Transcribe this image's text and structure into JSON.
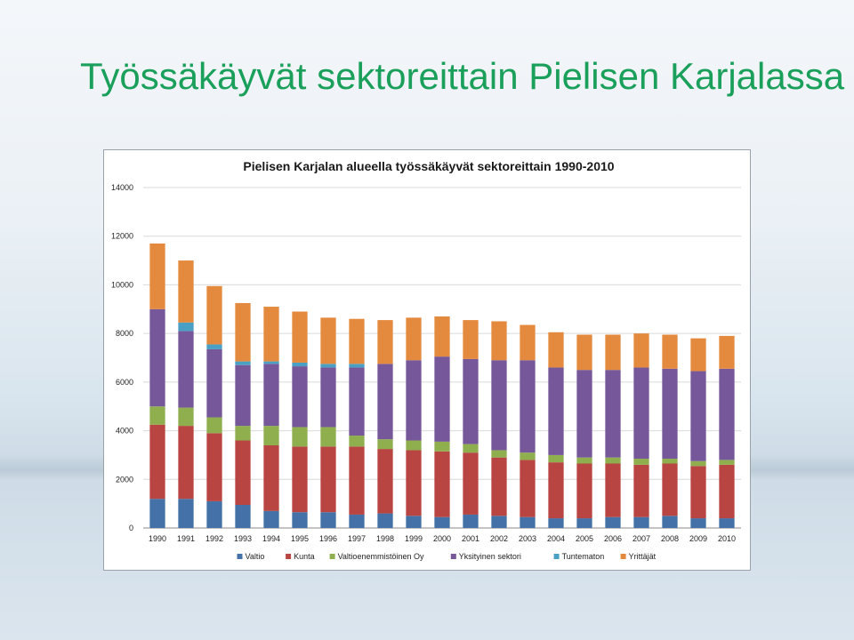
{
  "slide": {
    "title": "Työssäkäyvät sektoreittain Pielisen Karjalassa",
    "title_color": "#1aa05a"
  },
  "chart_data": {
    "type": "bar",
    "stacked": true,
    "title": "Pielisen Karjalan alueella työssäkäyvät sektoreittain 1990-2010",
    "xlabel": "",
    "ylabel": "",
    "ylim": [
      0,
      14000
    ],
    "yticks": [
      "0",
      "2000",
      "4000",
      "6000",
      "8000",
      "10000",
      "12000",
      "14000"
    ],
    "grid": true,
    "legend_position": "bottom",
    "categories": [
      "1990",
      "1991",
      "1992",
      "1993",
      "1994",
      "1995",
      "1996",
      "1997",
      "1998",
      "1999",
      "2000",
      "2001",
      "2002",
      "2003",
      "2004",
      "2005",
      "2006",
      "2007",
      "2008",
      "2009",
      "2010"
    ],
    "series": [
      {
        "name": "Valtio",
        "color": "#4472a8",
        "values": [
          1200,
          1200,
          1100,
          950,
          700,
          650,
          650,
          550,
          600,
          500,
          450,
          550,
          500,
          450,
          400,
          400,
          450,
          450,
          500,
          400,
          400
        ]
      },
      {
        "name": "Kunta",
        "color": "#b84541",
        "values": [
          3050,
          3000,
          2800,
          2650,
          2700,
          2700,
          2700,
          2800,
          2650,
          2700,
          2700,
          2550,
          2400,
          2350,
          2300,
          2250,
          2200,
          2150,
          2150,
          2150,
          2200
        ]
      },
      {
        "name": "Valtioenemmistöinen Oy",
        "color": "#8faf4e",
        "values": [
          750,
          750,
          650,
          600,
          800,
          800,
          800,
          450,
          400,
          400,
          400,
          350,
          300,
          300,
          300,
          250,
          250,
          250,
          200,
          200,
          200
        ]
      },
      {
        "name": "Yksityinen sektori",
        "color": "#76589a",
        "values": [
          4000,
          3150,
          2800,
          2500,
          2550,
          2500,
          2450,
          2800,
          3100,
          3300,
          3500,
          3500,
          3700,
          3800,
          3600,
          3600,
          3600,
          3750,
          3700,
          3700,
          3750
        ]
      },
      {
        "name": "Tuntematon",
        "color": "#4aa0c4",
        "values": [
          0,
          350,
          200,
          150,
          100,
          150,
          150,
          150,
          0,
          0,
          0,
          0,
          0,
          0,
          0,
          0,
          0,
          0,
          0,
          0,
          0
        ]
      },
      {
        "name": "Yrittäjät",
        "color": "#e48a3e",
        "values": [
          2700,
          2550,
          2400,
          2400,
          2250,
          2100,
          1900,
          1850,
          1800,
          1750,
          1650,
          1600,
          1600,
          1450,
          1450,
          1450,
          1450,
          1400,
          1400,
          1350,
          1350
        ]
      }
    ]
  }
}
